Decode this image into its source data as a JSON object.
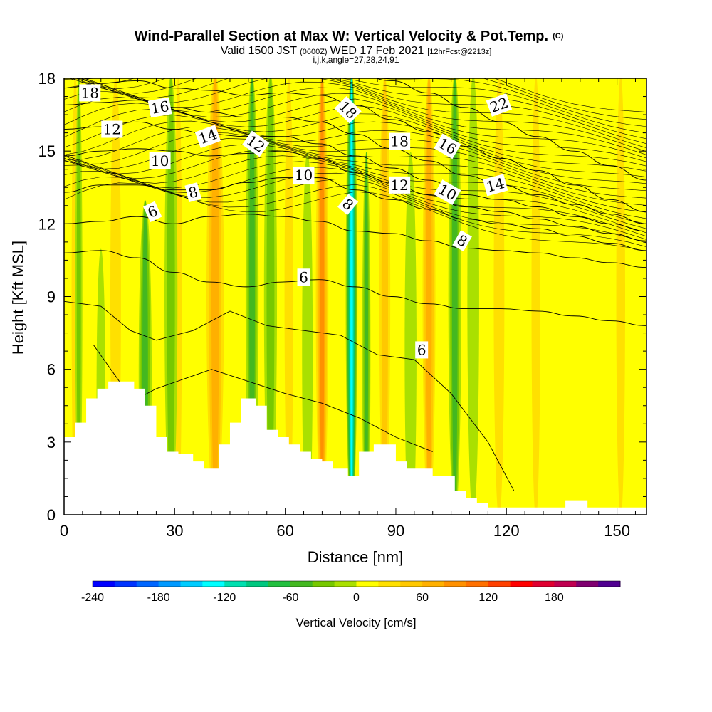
{
  "title": {
    "main": "Wind-Parallel Section at Max W: Vertical Velocity & Pot.Temp.",
    "main_unit": "(C)",
    "valid_prefix": "Valid 1500 JST",
    "valid_utc": "(0600Z)",
    "valid_date": "WED 17 Feb 2021",
    "forecast": "[12hrFcst@2213z]",
    "indices": "i,j,k,angle=27,28,24,91"
  },
  "chart_data": {
    "type": "heatmap",
    "xlabel": "Distance [nm]",
    "ylabel": "Height [Kft MSL]",
    "xlim": [
      0,
      158
    ],
    "ylim": [
      0,
      18
    ],
    "xticks": [
      0,
      30,
      60,
      90,
      120,
      150
    ],
    "yticks": [
      0,
      3,
      6,
      9,
      12,
      15,
      18
    ],
    "colorbar": {
      "title": "Vertical Velocity [cm/s]",
      "range": [
        -240,
        220
      ],
      "step": 20,
      "tick_values": [
        -240,
        -180,
        -120,
        -60,
        0,
        60,
        120,
        180
      ],
      "colors": [
        "#0000ff",
        "#0033ff",
        "#0066ff",
        "#0099ff",
        "#00ccff",
        "#00ffff",
        "#00e0b0",
        "#00c880",
        "#22c040",
        "#44b820",
        "#77c800",
        "#aae000",
        "#ffff00",
        "#ffe000",
        "#ffc800",
        "#ffb000",
        "#ff9000",
        "#ff7000",
        "#ff4000",
        "#ff0000",
        "#e00030",
        "#c00050",
        "#800070",
        "#500090"
      ]
    },
    "vertical_velocity_columns": [
      {
        "x": 3,
        "w": 2,
        "v": 40,
        "top": 18
      },
      {
        "x": 4,
        "w": 1.2,
        "v": -40,
        "top": 18
      },
      {
        "x": 10,
        "w": 1.5,
        "v": -25,
        "top": 12
      },
      {
        "x": 14,
        "w": 3,
        "v": 40,
        "top": 18
      },
      {
        "x": 22,
        "w": 2.2,
        "v": -60,
        "top": 14
      },
      {
        "x": 31,
        "w": 2.0,
        "v": 40,
        "top": 18
      },
      {
        "x": 29,
        "w": 2.2,
        "v": -50,
        "top": 18
      },
      {
        "x": 41,
        "w": 3.8,
        "v": 90,
        "top": 18
      },
      {
        "x": 48,
        "w": 2.0,
        "v": 25,
        "top": 14
      },
      {
        "x": 51,
        "w": 2.2,
        "v": -60,
        "top": 18
      },
      {
        "x": 56,
        "w": 2.2,
        "v": -45,
        "top": 18
      },
      {
        "x": 61,
        "w": 2.5,
        "v": 50,
        "top": 18
      },
      {
        "x": 66,
        "w": 1.8,
        "v": -35,
        "top": 16
      },
      {
        "x": 70,
        "w": 2.6,
        "v": 110,
        "top": 18
      },
      {
        "x": 78,
        "w": 2.0,
        "v": -140,
        "top": 18
      },
      {
        "x": 82,
        "w": 1.4,
        "v": -60,
        "top": 16
      },
      {
        "x": 87,
        "w": 2.6,
        "v": 60,
        "top": 18
      },
      {
        "x": 94,
        "w": 2.0,
        "v": -35,
        "top": 16
      },
      {
        "x": 99,
        "w": 2.8,
        "v": 95,
        "top": 18
      },
      {
        "x": 106,
        "w": 2.2,
        "v": -60,
        "top": 18
      },
      {
        "x": 111,
        "w": 2.0,
        "v": -25,
        "top": 18
      },
      {
        "x": 118,
        "w": 3.0,
        "v": 40,
        "top": 18
      },
      {
        "x": 128,
        "w": 2.5,
        "v": 50,
        "top": 18
      },
      {
        "x": 138,
        "w": 2.2,
        "v": 30,
        "top": 18
      },
      {
        "x": 151,
        "w": 2.5,
        "v": 45,
        "top": 18
      }
    ],
    "terrain": {
      "x": [
        0,
        3,
        3,
        6,
        6,
        9,
        9,
        12,
        12,
        19,
        19,
        22,
        22,
        25,
        25,
        28,
        28,
        31,
        31,
        35,
        35,
        38,
        38,
        42,
        42,
        45,
        45,
        48,
        48,
        52,
        52,
        55,
        55,
        58,
        58,
        61,
        61,
        64,
        64,
        67,
        67,
        70,
        70,
        73,
        73,
        77,
        77,
        80,
        80,
        84,
        84,
        87,
        87,
        90,
        90,
        93,
        93,
        96,
        96,
        100,
        100,
        106,
        106,
        109,
        109,
        112,
        112,
        115,
        115,
        121,
        121,
        136,
        136,
        142,
        142,
        158
      ],
      "y": [
        3.2,
        3.2,
        3.8,
        3.8,
        4.8,
        4.8,
        5.2,
        5.2,
        5.5,
        5.5,
        5.2,
        5.2,
        4.5,
        4.5,
        3.2,
        3.2,
        2.6,
        2.6,
        2.5,
        2.5,
        2.2,
        2.2,
        1.9,
        1.9,
        2.9,
        2.9,
        3.8,
        3.8,
        4.8,
        4.8,
        4.5,
        4.5,
        3.5,
        3.5,
        3.2,
        3.2,
        2.9,
        2.9,
        2.6,
        2.6,
        2.3,
        2.3,
        2.2,
        2.2,
        1.9,
        1.9,
        1.6,
        1.6,
        2.6,
        2.6,
        2.9,
        2.9,
        2.9,
        2.9,
        2.2,
        2.2,
        1.9,
        1.9,
        1.9,
        1.9,
        1.6,
        1.6,
        1.0,
        1.0,
        0.7,
        0.7,
        0.5,
        0.5,
        0.3,
        0.3,
        0.3,
        0.3,
        0.6,
        0.6,
        0.3,
        0.3
      ]
    },
    "theta_contours": [
      {
        "label": "6",
        "y": [
          10.8,
          10.9,
          10.6,
          10.0,
          9.6,
          9.4,
          9.6,
          9.7,
          9.4,
          9.0,
          8.7,
          8.5,
          8.5,
          8.4,
          8.2,
          8.0,
          7.8
        ]
      },
      {
        "label": "8",
        "y": [
          12.0,
          12.1,
          12.3,
          12.0,
          12.3,
          12.4,
          12.3,
          12.1,
          11.7,
          11.6,
          11.3,
          11.0,
          10.9,
          10.8,
          10.6,
          10.4,
          10.2
        ]
      },
      {
        "label": "10",
        "y": [
          13.3,
          13.6,
          13.6,
          13.4,
          13.4,
          13.7,
          13.9,
          13.9,
          13.4,
          13.0,
          12.6,
          12.2,
          12.0,
          11.8,
          11.5,
          11.2,
          10.9
        ]
      },
      {
        "label": "12",
        "y": [
          14.8,
          15.0,
          15.1,
          15.0,
          14.8,
          14.9,
          15.0,
          14.7,
          14.1,
          13.7,
          13.2,
          12.7,
          12.5,
          12.2,
          11.9,
          11.6,
          11.3
        ]
      },
      {
        "label": "14",
        "y": [
          15.9,
          16.0,
          16.2,
          15.9,
          15.7,
          15.6,
          15.6,
          15.3,
          14.8,
          14.3,
          13.8,
          13.2,
          13.0,
          12.7,
          12.3,
          12.0,
          11.7
        ]
      },
      {
        "label": "16",
        "y": [
          16.9,
          17.0,
          17.1,
          16.8,
          16.6,
          16.4,
          16.4,
          16.2,
          15.7,
          15.1,
          14.6,
          14.0,
          13.6,
          13.2,
          12.8,
          12.4,
          12.0
        ]
      },
      {
        "label": "18",
        "y": [
          17.6,
          17.8,
          17.9,
          17.6,
          17.5,
          17.3,
          17.4,
          17.3,
          16.9,
          16.3,
          15.8,
          15.2,
          14.7,
          14.2,
          13.6,
          13.0,
          12.5
        ]
      },
      {
        "label": "22",
        "y": [
          18.5,
          18.5,
          18.5,
          18.5,
          18.5,
          18.4,
          18.4,
          18.4,
          18.2,
          17.9,
          17.4,
          16.8,
          16.2,
          15.6,
          15.0,
          14.4,
          13.8
        ]
      }
    ],
    "contour_labels": [
      {
        "text": "18",
        "x": 7,
        "y": 17.4,
        "rot": 0
      },
      {
        "text": "16",
        "x": 26,
        "y": 16.8,
        "rot": -10
      },
      {
        "text": "12",
        "x": 13,
        "y": 15.9,
        "rot": 0
      },
      {
        "text": "14",
        "x": 39,
        "y": 15.6,
        "rot": -20
      },
      {
        "text": "12",
        "x": 52,
        "y": 15.3,
        "rot": 35
      },
      {
        "text": "18",
        "x": 77,
        "y": 16.7,
        "rot": 45
      },
      {
        "text": "18",
        "x": 91,
        "y": 15.4,
        "rot": 0
      },
      {
        "text": "16",
        "x": 104,
        "y": 15.2,
        "rot": 30
      },
      {
        "text": "22",
        "x": 118,
        "y": 16.9,
        "rot": -20
      },
      {
        "text": "10",
        "x": 26,
        "y": 14.6,
        "rot": 0
      },
      {
        "text": "10",
        "x": 65,
        "y": 14.0,
        "rot": 0
      },
      {
        "text": "12",
        "x": 91,
        "y": 13.6,
        "rot": 0
      },
      {
        "text": "10",
        "x": 104,
        "y": 13.3,
        "rot": 30
      },
      {
        "text": "14",
        "x": 117,
        "y": 13.6,
        "rot": -15
      },
      {
        "text": "8",
        "x": 35,
        "y": 13.3,
        "rot": -15
      },
      {
        "text": "8",
        "x": 77,
        "y": 12.8,
        "rot": 40
      },
      {
        "text": "8",
        "x": 108,
        "y": 11.3,
        "rot": 30
      },
      {
        "text": "6",
        "x": 24,
        "y": 12.5,
        "rot": -25
      },
      {
        "text": "6",
        "x": 65,
        "y": 9.8,
        "rot": 0
      },
      {
        "text": "6",
        "x": 97,
        "y": 6.8,
        "rot": 0
      }
    ]
  }
}
